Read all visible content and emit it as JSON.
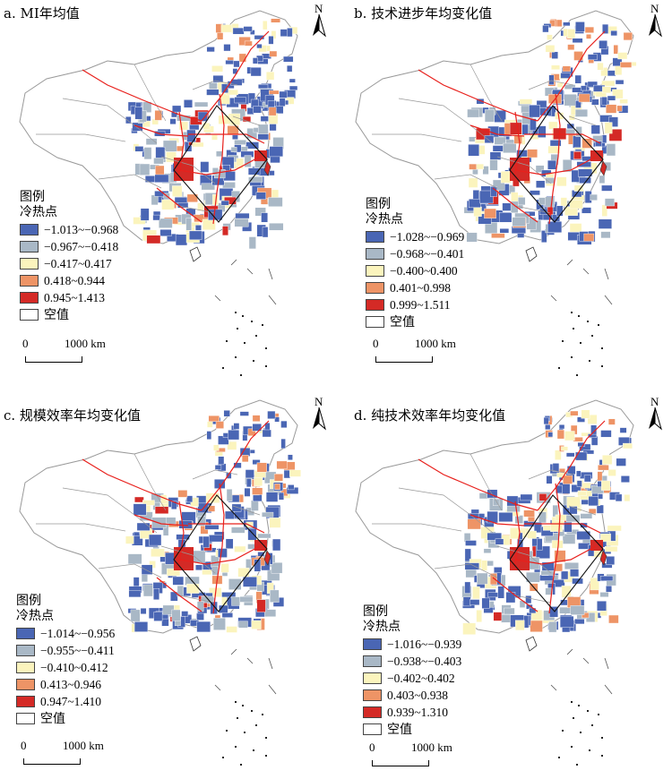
{
  "colors": {
    "class1": "#4a66b4",
    "class2": "#a9b8c6",
    "class3": "#fbf4bd",
    "class4": "#ee9466",
    "class5": "#d42a26",
    "empty": "#ffffff",
    "railway": "#e8201c",
    "boundary": "#999999"
  },
  "icons": {
    "north_arrow": "north-arrow-icon"
  },
  "panels": [
    {
      "title": "a. MI年均值",
      "north_label": "N",
      "legend": {
        "title": "图例",
        "subtitle": "冷热点",
        "items": [
          "−1.013~−0.968",
          "−0.967~−0.418",
          "−0.417~0.417",
          "0.418~0.944",
          "0.945~1.413",
          "空值"
        ]
      },
      "scale": {
        "zero": "0",
        "distance": "1000 km"
      }
    },
    {
      "title": "b. 技术进步年均变化值",
      "north_label": "N",
      "legend": {
        "title": "图例",
        "subtitle": "冷热点",
        "items": [
          "−1.028~−0.969",
          "−0.968~−0.401",
          "−0.400~0.400",
          "0.401~0.998",
          "0.999~1.511",
          "空值"
        ]
      },
      "scale": {
        "zero": "0",
        "distance": "1000 km"
      }
    },
    {
      "title": "c. 规模效率年均变化值",
      "north_label": "N",
      "legend": {
        "title": "图例",
        "subtitle": "冷热点",
        "items": [
          "−1.014~−0.956",
          "−0.955~−0.411",
          "−0.410~0.412",
          "0.413~0.946",
          "0.947~1.410",
          "空值"
        ]
      },
      "scale": {
        "zero": "0",
        "distance": "1000 km"
      }
    },
    {
      "title": "d. 纯技术效率年均变化值",
      "north_label": "N",
      "legend": {
        "title": "图例",
        "subtitle": "冷热点",
        "items": [
          "−1.016~−0.939",
          "−0.938~−0.403",
          "−0.402~0.402",
          "0.403~0.938",
          "0.939~1.310",
          "空值"
        ]
      },
      "scale": {
        "zero": "0",
        "distance": "1000 km"
      }
    }
  ]
}
